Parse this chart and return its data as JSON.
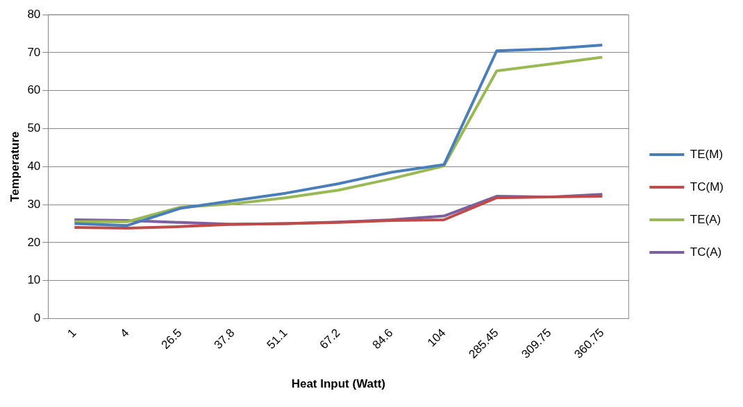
{
  "chart_data": {
    "type": "line",
    "xlabel": "Heat Input (Watt)",
    "ylabel": "Temperature",
    "categories": [
      "1",
      "4",
      "26.5",
      "37.8",
      "51.1",
      "67.2",
      "84.6",
      "104",
      "285.45",
      "309.75",
      "360.75"
    ],
    "series": [
      {
        "name": "TE(M)",
        "color": "#4a7ebb",
        "values": [
          25,
          24.5,
          29,
          31,
          33,
          35.5,
          38.5,
          40.5,
          70.5,
          71,
          72
        ]
      },
      {
        "name": "TC(M)",
        "color": "#be4b48",
        "values": [
          24,
          23.8,
          24.2,
          24.8,
          25,
          25.3,
          25.8,
          26,
          31.8,
          32,
          32.2
        ]
      },
      {
        "name": "TE(A)",
        "color": "#98b954",
        "values": [
          25.5,
          25.5,
          29.3,
          30.2,
          31.8,
          33.8,
          36.8,
          40.2,
          65.2,
          67,
          68.8
        ]
      },
      {
        "name": "TC(A)",
        "color": "#7d60a0",
        "values": [
          26,
          25.8,
          25.3,
          24.8,
          25,
          25.4,
          26,
          27,
          32.2,
          32,
          32.7
        ]
      }
    ],
    "ylim": [
      0,
      80
    ],
    "yticks": [
      0,
      10,
      20,
      30,
      40,
      50,
      60,
      70,
      80
    ],
    "grid": "y",
    "legend": "right",
    "marker": "none"
  }
}
